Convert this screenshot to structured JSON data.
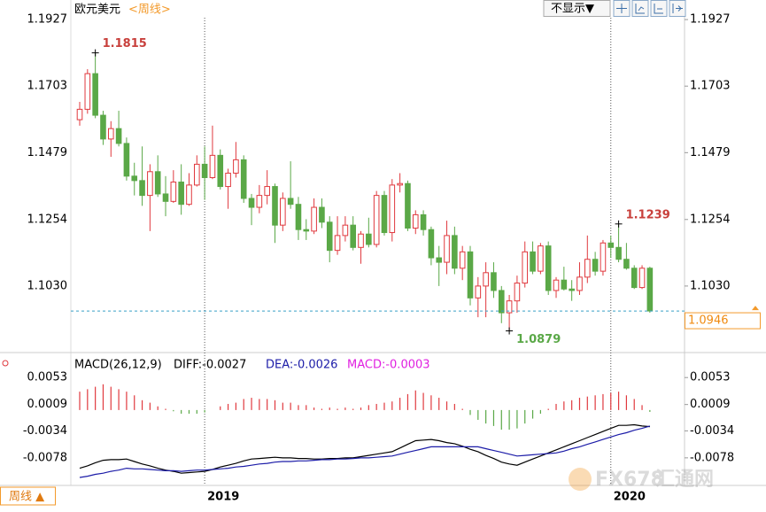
{
  "chart_data": [
    {
      "type": "candlestick",
      "title": "欧元美元",
      "period": "<周线>",
      "categories": [
        null,
        null,
        null,
        null,
        null,
        null,
        null,
        null,
        null,
        null,
        null,
        null,
        null,
        null,
        null,
        null,
        "2019",
        null,
        null,
        null,
        null,
        null,
        null,
        null,
        null,
        null,
        null,
        null,
        null,
        null,
        null,
        null,
        null,
        null,
        null,
        null,
        null,
        null,
        null,
        null,
        null,
        null,
        null,
        null,
        null,
        null,
        null,
        null,
        null,
        null,
        null,
        null,
        null,
        null,
        null,
        null,
        null,
        null,
        null,
        null,
        null,
        null,
        null,
        null,
        null,
        null,
        null,
        null,
        "2020",
        null,
        null,
        null,
        null,
        null
      ],
      "open": [
        1.159,
        1.1625,
        1.1745,
        1.1605,
        1.1525,
        1.156,
        1.151,
        1.14,
        1.1385,
        1.1335,
        1.1415,
        1.134,
        1.1315,
        1.138,
        1.1305,
        1.137,
        1.144,
        1.1395,
        1.147,
        1.1365,
        1.141,
        1.1455,
        1.1325,
        1.1295,
        1.1335,
        1.1365,
        1.1235,
        1.1325,
        1.1305,
        1.122,
        1.1215,
        1.1295,
        1.1245,
        1.115,
        1.12,
        1.1235,
        1.116,
        1.1205,
        1.117,
        1.1335,
        1.121,
        1.137,
        1.1375,
        1.1225,
        1.127,
        1.122,
        1.1125,
        1.111,
        1.12,
        1.109,
        1.1145,
        1.099,
        1.103,
        1.1075,
        1.1015,
        1.094,
        1.098,
        1.104,
        1.1145,
        1.108,
        1.1165,
        1.1015,
        1.105,
        1.102,
        1.1015,
        1.106,
        1.112,
        1.108,
        1.1175,
        1.116,
        1.112,
        1.109,
        1.1025,
        1.109
      ],
      "high": [
        1.165,
        1.176,
        1.1815,
        1.162,
        1.1585,
        1.162,
        1.153,
        1.1445,
        1.15,
        1.144,
        1.147,
        1.14,
        1.142,
        1.144,
        1.141,
        1.147,
        1.15,
        1.157,
        1.149,
        1.1425,
        1.1515,
        1.147,
        1.134,
        1.137,
        1.142,
        1.1375,
        1.1345,
        1.145,
        1.133,
        1.1255,
        1.1325,
        1.1325,
        1.1265,
        1.1265,
        1.1265,
        1.1265,
        1.1215,
        1.126,
        1.135,
        1.135,
        1.139,
        1.141,
        1.1385,
        1.1285,
        1.1285,
        1.123,
        1.1165,
        1.125,
        1.123,
        1.1165,
        1.1165,
        1.106,
        1.111,
        1.111,
        1.103,
        1.1,
        1.1065,
        1.118,
        1.118,
        1.1175,
        1.118,
        1.106,
        1.1095,
        1.105,
        1.111,
        1.12,
        1.1145,
        1.1185,
        1.12,
        1.1239,
        1.1175,
        1.11,
        1.11,
        1.1095
      ],
      "low": [
        1.157,
        1.161,
        1.1595,
        1.1505,
        1.1465,
        1.15,
        1.1385,
        1.1335,
        1.13,
        1.1215,
        1.133,
        1.1265,
        1.131,
        1.127,
        1.13,
        1.1365,
        1.132,
        1.139,
        1.1355,
        1.129,
        1.1395,
        1.131,
        1.1235,
        1.1275,
        1.1305,
        1.1175,
        1.1215,
        1.129,
        1.1185,
        1.1185,
        1.1205,
        1.1225,
        1.111,
        1.1135,
        1.118,
        1.115,
        1.1105,
        1.116,
        1.116,
        1.12,
        1.118,
        1.1345,
        1.1215,
        1.1205,
        1.12,
        1.11,
        1.103,
        1.107,
        1.107,
        1.105,
        1.0965,
        1.0925,
        1.0925,
        1.099,
        1.0905,
        1.0879,
        1.094,
        1.1025,
        1.107,
        1.107,
        1.1,
        1.099,
        1.1015,
        1.098,
        1.1,
        1.104,
        1.1065,
        1.1065,
        1.1125,
        1.111,
        1.1085,
        1.102,
        1.102,
        1.094
      ],
      "close": [
        1.1625,
        1.1745,
        1.1605,
        1.1525,
        1.156,
        1.151,
        1.14,
        1.1385,
        1.1335,
        1.1415,
        1.134,
        1.1315,
        1.138,
        1.1305,
        1.137,
        1.144,
        1.1395,
        1.147,
        1.1365,
        1.141,
        1.1455,
        1.1325,
        1.1295,
        1.1335,
        1.1365,
        1.1235,
        1.1325,
        1.1305,
        1.122,
        1.1215,
        1.1295,
        1.1245,
        1.115,
        1.12,
        1.1235,
        1.116,
        1.1205,
        1.117,
        1.1335,
        1.121,
        1.137,
        1.1375,
        1.1225,
        1.127,
        1.122,
        1.1125,
        1.111,
        1.12,
        1.109,
        1.1145,
        1.099,
        1.103,
        1.1075,
        1.1015,
        1.094,
        1.098,
        1.104,
        1.1145,
        1.108,
        1.1165,
        1.1015,
        1.105,
        1.102,
        1.1015,
        1.106,
        1.112,
        1.108,
        1.1175,
        1.116,
        1.112,
        1.109,
        1.1025,
        1.109,
        1.0946
      ],
      "up_color": "#e0393e",
      "down_color": "#5aa847",
      "ylim": [
        1.0815,
        1.1978
      ],
      "yticks": [
        1.1927,
        1.1703,
        1.1479,
        1.1254,
        {
          "value": 1.103,
          "label": "1.1030"
        }
      ],
      "last_price": 1.0946,
      "annotations": [
        1.1815,
        1.1239,
        1.0879
      ]
    },
    {
      "type": "macd",
      "title": "MACD(26,12,9)",
      "series": [
        {
          "name": "DIFF:-0.0027",
          "color": "#000000",
          "values": [
            -0.0095,
            -0.0091,
            -0.0086,
            -0.0082,
            -0.0081,
            -0.0081,
            -0.008,
            -0.0084,
            -0.0088,
            -0.0091,
            -0.0095,
            -0.0098,
            -0.01,
            -0.0103,
            -0.0102,
            -0.0101,
            -0.01,
            -0.0097,
            -0.0093,
            -0.009,
            -0.0087,
            -0.0083,
            -0.008,
            -0.0079,
            -0.0078,
            -0.0077,
            -0.0078,
            -0.0078,
            -0.0079,
            -0.0079,
            -0.008,
            -0.008,
            -0.0079,
            -0.0079,
            -0.0078,
            -0.0078,
            -0.0076,
            -0.0074,
            -0.0072,
            -0.007,
            -0.0068,
            -0.0062,
            -0.0056,
            -0.005,
            -0.0049,
            -0.0048,
            -0.005,
            -0.0053,
            -0.0055,
            -0.0059,
            -0.0064,
            -0.0068,
            -0.0074,
            -0.0079,
            -0.0085,
            -0.0088,
            -0.009,
            -0.0085,
            -0.008,
            -0.0075,
            -0.007,
            -0.0065,
            -0.006,
            -0.0055,
            -0.005,
            -0.0045,
            -0.004,
            -0.0035,
            -0.003,
            -0.0025,
            -0.0025,
            -0.0024,
            -0.0026,
            -0.0027
          ]
        },
        {
          "name": "DEA:-0.0026",
          "color": "#1c1ca8",
          "values": [
            -0.011,
            -0.0108,
            -0.0105,
            -0.0103,
            -0.01,
            -0.0098,
            -0.0095,
            -0.0096,
            -0.0096,
            -0.0097,
            -0.0098,
            -0.0099,
            -0.0099,
            -0.01,
            -0.0099,
            -0.0098,
            -0.0098,
            -0.0097,
            -0.0096,
            -0.0095,
            -0.0093,
            -0.0092,
            -0.009,
            -0.0088,
            -0.0087,
            -0.0085,
            -0.0084,
            -0.0084,
            -0.0083,
            -0.0083,
            -0.0082,
            -0.0081,
            -0.0081,
            -0.008,
            -0.008,
            -0.0079,
            -0.0078,
            -0.0078,
            -0.0077,
            -0.0076,
            -0.0075,
            -0.0072,
            -0.0069,
            -0.0066,
            -0.0063,
            -0.006,
            -0.006,
            -0.006,
            -0.006,
            -0.006,
            -0.006,
            -0.006,
            -0.0063,
            -0.0066,
            -0.0069,
            -0.0072,
            -0.0075,
            -0.0074,
            -0.0073,
            -0.0072,
            -0.0071,
            -0.007,
            -0.0067,
            -0.0063,
            -0.006,
            -0.0056,
            -0.0052,
            -0.0048,
            -0.0044,
            -0.004,
            -0.0037,
            -0.0033,
            -0.003,
            -0.0026
          ]
        },
        {
          "name": "MACD:-0.0003",
          "color": "#e020e0",
          "type": "bar",
          "up_color": "#e0393e",
          "down_color": "#5aa847",
          "values": [
            0.003,
            0.0034,
            0.0038,
            0.0042,
            0.0038,
            0.0034,
            0.003,
            0.0024,
            0.0016,
            0.0012,
            0.0006,
            0.0002,
            -0.0002,
            -0.0006,
            -0.0006,
            -0.0006,
            -0.0004,
            0,
            0.0006,
            0.001,
            0.0012,
            0.0018,
            0.002,
            0.0018,
            0.0018,
            0.0016,
            0.0012,
            0.0012,
            0.0008,
            0.0008,
            0.0004,
            0.0002,
            0.0004,
            0.0002,
            0.0004,
            0.0002,
            0.0004,
            0.0008,
            0.001,
            0.0012,
            0.0014,
            0.002,
            0.0026,
            0.0032,
            0.0028,
            0.0024,
            0.002,
            0.0014,
            0.001,
            0.0002,
            -0.0008,
            -0.0016,
            -0.0022,
            -0.0026,
            -0.0032,
            -0.0032,
            -0.003,
            -0.0022,
            -0.0014,
            -0.0006,
            0.0002,
            0.001,
            0.0014,
            0.0016,
            0.002,
            0.0022,
            0.0024,
            0.0026,
            0.0028,
            0.003,
            0.0024,
            0.0018,
            0.0008,
            -0.0003
          ]
        }
      ],
      "ylim": [
        -0.0123,
        0.0088
      ],
      "yticks": [
        0.0053,
        0.0009,
        -0.0034,
        -0.0078
      ]
    }
  ],
  "buttons": [
    "不显示▼"
  ],
  "bottom_tab": "周线 ▲",
  "watermark": [
    "FX678",
    "汇通网"
  ]
}
